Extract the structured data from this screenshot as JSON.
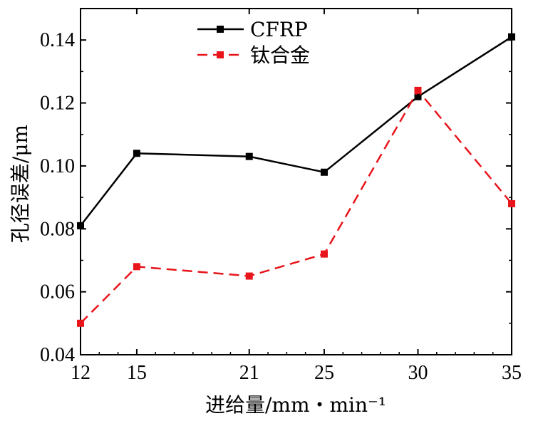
{
  "chart_data": {
    "type": "line",
    "x": [
      12,
      15,
      21,
      25,
      30,
      35
    ],
    "xticks": [
      "12",
      "15",
      "21",
      "25",
      "30",
      "35"
    ],
    "xlim": [
      12,
      35
    ],
    "ylim": [
      0.04,
      0.15
    ],
    "yticks": [
      "0.04",
      "0.06",
      "0.08",
      "0.10",
      "0.12",
      "0.14"
    ],
    "xlabel": "进给量/mm・min⁻¹",
    "ylabel": "孔径误差/μm",
    "grid": false,
    "legend_position": "top-left",
    "series": [
      {
        "name": "CFRP",
        "color": "#000000",
        "dash": "solid",
        "marker": "square",
        "values": [
          0.081,
          0.104,
          0.103,
          0.098,
          0.122,
          0.141
        ]
      },
      {
        "name": "钛合金",
        "color": "#e8151b",
        "dash": "dashed",
        "marker": "square",
        "values": [
          0.05,
          0.068,
          0.065,
          0.072,
          0.124,
          0.088
        ]
      }
    ]
  }
}
